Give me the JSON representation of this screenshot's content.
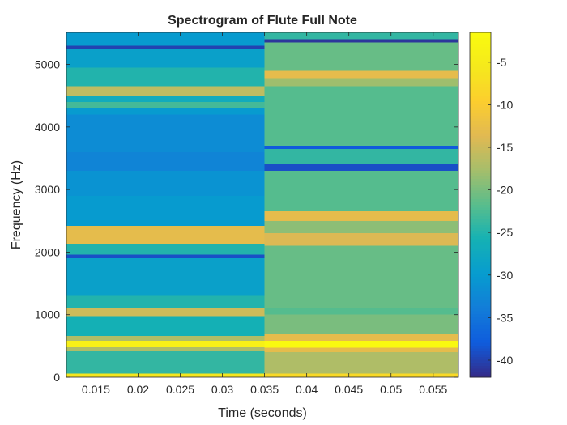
{
  "chart_data": {
    "type": "heatmap",
    "title": "Spectrogram of Flute Full Note",
    "xlabel": "Time (seconds)",
    "ylabel": "Frequency (Hz)",
    "xlim": [
      0.0115,
      0.058
    ],
    "ylim": [
      0,
      5512
    ],
    "x_ticks": [
      0.015,
      0.02,
      0.025,
      0.03,
      0.035,
      0.04,
      0.045,
      0.05,
      0.055
    ],
    "x_tick_labels": [
      "0.015",
      "0.02",
      "0.025",
      "0.03",
      "0.035",
      "0.04",
      "0.045",
      "0.05",
      "0.055"
    ],
    "y_ticks": [
      0,
      1000,
      2000,
      3000,
      4000,
      5000
    ],
    "y_tick_labels": [
      "0",
      "1000",
      "2000",
      "3000",
      "4000",
      "5000"
    ],
    "colormap": "parula",
    "colorbar": {
      "clim": [
        -42,
        -1.5
      ],
      "ticks": [
        -40,
        -35,
        -30,
        -25,
        -20,
        -15,
        -10,
        -5
      ],
      "tick_labels": [
        "-40",
        "-35",
        "-30",
        "-25",
        "-20",
        "-15",
        "-10",
        "-5"
      ],
      "placement": "right"
    },
    "time_segments": [
      {
        "t_start": 0.0115,
        "t_end": 0.035,
        "bands": [
          {
            "f": [
              0,
              60
            ],
            "db": -6
          },
          {
            "f": [
              60,
              420
            ],
            "db": -24
          },
          {
            "f": [
              420,
              480
            ],
            "db": -17
          },
          {
            "f": [
              480,
              580
            ],
            "db": -4
          },
          {
            "f": [
              580,
              660
            ],
            "db": -17
          },
          {
            "f": [
              660,
              980
            ],
            "db": -26
          },
          {
            "f": [
              980,
              1100
            ],
            "db": -15
          },
          {
            "f": [
              1100,
              1300
            ],
            "db": -25
          },
          {
            "f": [
              1300,
              1900
            ],
            "db": -29
          },
          {
            "f": [
              1900,
              1960
            ],
            "db": -39
          },
          {
            "f": [
              1960,
              2120
            ],
            "db": -25
          },
          {
            "f": [
              2120,
              2420
            ],
            "db": -13
          },
          {
            "f": [
              2420,
              2900
            ],
            "db": -30
          },
          {
            "f": [
              2900,
              3300
            ],
            "db": -31
          },
          {
            "f": [
              3300,
              3600
            ],
            "db": -33
          },
          {
            "f": [
              3600,
              4200
            ],
            "db": -32
          },
          {
            "f": [
              4200,
              4300
            ],
            "db": -30
          },
          {
            "f": [
              4300,
              4400
            ],
            "db": -23
          },
          {
            "f": [
              4400,
              4500
            ],
            "db": -27
          },
          {
            "f": [
              4500,
              4650
            ],
            "db": -16
          },
          {
            "f": [
              4650,
              4950
            ],
            "db": -25
          },
          {
            "f": [
              4950,
              5250
            ],
            "db": -29
          },
          {
            "f": [
              5250,
              5300
            ],
            "db": -40
          },
          {
            "f": [
              5300,
              5512
            ],
            "db": -30
          }
        ]
      },
      {
        "t_start": 0.035,
        "t_end": 0.058,
        "bands": [
          {
            "f": [
              0,
              60
            ],
            "db": -8
          },
          {
            "f": [
              60,
              400
            ],
            "db": -17
          },
          {
            "f": [
              400,
              470
            ],
            "db": -13
          },
          {
            "f": [
              470,
              580
            ],
            "db": -2
          },
          {
            "f": [
              580,
              700
            ],
            "db": -13
          },
          {
            "f": [
              700,
              1000
            ],
            "db": -20
          },
          {
            "f": [
              1000,
              1100
            ],
            "db": -22
          },
          {
            "f": [
              1100,
              2100
            ],
            "db": -21
          },
          {
            "f": [
              2100,
              2300
            ],
            "db": -14
          },
          {
            "f": [
              2300,
              2500
            ],
            "db": -19
          },
          {
            "f": [
              2500,
              2650
            ],
            "db": -13
          },
          {
            "f": [
              2650,
              3300
            ],
            "db": -22
          },
          {
            "f": [
              3300,
              3400
            ],
            "db": -39
          },
          {
            "f": [
              3400,
              3650
            ],
            "db": -24
          },
          {
            "f": [
              3650,
              3700
            ],
            "db": -38
          },
          {
            "f": [
              3700,
              4650
            ],
            "db": -22
          },
          {
            "f": [
              4650,
              4780
            ],
            "db": -18
          },
          {
            "f": [
              4780,
              4900
            ],
            "db": -13
          },
          {
            "f": [
              4900,
              5350
            ],
            "db": -21
          },
          {
            "f": [
              5350,
              5400
            ],
            "db": -41
          },
          {
            "f": [
              5400,
              5512
            ],
            "db": -24
          }
        ]
      }
    ]
  }
}
